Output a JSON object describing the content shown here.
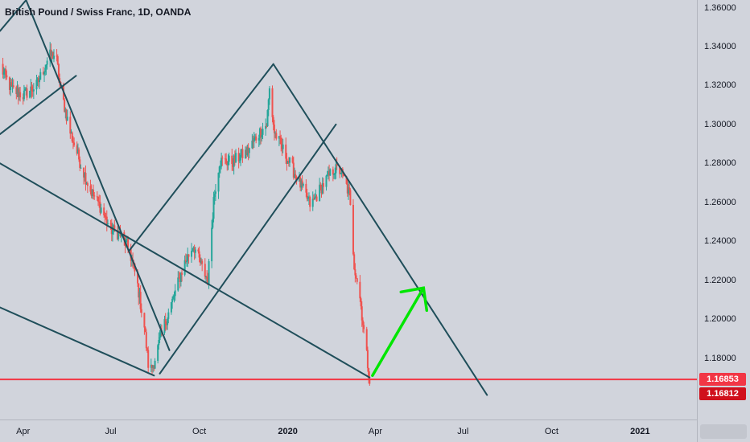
{
  "symbol_title": "British Pound / Swiss Franc, 1D, OANDA",
  "colors": {
    "background": "#d1d4dc",
    "up": "#26a69a",
    "down": "#ef5350",
    "trendline": "#1f4e5a",
    "support": "#f23645",
    "arrow": "#00e600",
    "last_price_tag": "#f23645",
    "second_price_tag": "#d0101c"
  },
  "price_tags": {
    "last_price": "1.16853",
    "second_price": "1.16812"
  },
  "chart_data": {
    "type": "candlestick",
    "title": "British Pound / Swiss Franc, 1D, OANDA",
    "ylim": [
      1.16,
      1.365
    ],
    "yticks": [
      "1.36000",
      "1.34000",
      "1.32000",
      "1.30000",
      "1.28000",
      "1.26000",
      "1.24000",
      "1.22000",
      "1.20000",
      "1.18000"
    ],
    "xticks": [
      {
        "label": "Apr",
        "date": "2019-04-01"
      },
      {
        "label": "Jul",
        "date": "2019-07-01"
      },
      {
        "label": "Oct",
        "date": "2019-10-01"
      },
      {
        "label": "2020",
        "date": "2020-01-01",
        "bold": true
      },
      {
        "label": "Apr",
        "date": "2020-04-01"
      },
      {
        "label": "Jul",
        "date": "2020-07-01"
      },
      {
        "label": "Oct",
        "date": "2020-10-01"
      },
      {
        "label": "2021",
        "date": "2021-01-01",
        "bold": true
      }
    ],
    "xlim": [
      "2019-03-08",
      "2021-03-01"
    ],
    "price_path": [
      [
        "2019-03-08",
        1.33
      ],
      [
        "2019-03-20",
        1.318
      ],
      [
        "2019-04-01",
        1.315
      ],
      [
        "2019-04-15",
        1.32
      ],
      [
        "2019-04-28",
        1.335
      ],
      [
        "2019-05-05",
        1.336
      ],
      [
        "2019-05-10",
        1.318
      ],
      [
        "2019-05-20",
        1.296
      ],
      [
        "2019-06-01",
        1.278
      ],
      [
        "2019-06-10",
        1.266
      ],
      [
        "2019-06-20",
        1.258
      ],
      [
        "2019-07-01",
        1.246
      ],
      [
        "2019-07-10",
        1.244
      ],
      [
        "2019-07-20",
        1.236
      ],
      [
        "2019-07-28",
        1.22
      ],
      [
        "2019-08-05",
        1.196
      ],
      [
        "2019-08-10",
        1.172
      ],
      [
        "2019-08-15",
        1.178
      ],
      [
        "2019-08-25",
        1.196
      ],
      [
        "2019-09-05",
        1.212
      ],
      [
        "2019-09-15",
        1.228
      ],
      [
        "2019-09-25",
        1.238
      ],
      [
        "2019-10-05",
        1.225
      ],
      [
        "2019-10-10",
        1.22
      ],
      [
        "2019-10-16",
        1.262
      ],
      [
        "2019-10-22",
        1.281
      ],
      [
        "2019-11-05",
        1.281
      ],
      [
        "2019-11-20",
        1.286
      ],
      [
        "2019-12-01",
        1.295
      ],
      [
        "2019-12-10",
        1.3
      ],
      [
        "2019-12-13",
        1.318
      ],
      [
        "2019-12-18",
        1.296
      ],
      [
        "2020-01-01",
        1.282
      ],
      [
        "2020-01-15",
        1.268
      ],
      [
        "2020-01-25",
        1.258
      ],
      [
        "2020-02-05",
        1.268
      ],
      [
        "2020-02-18",
        1.277
      ],
      [
        "2020-02-25",
        1.276
      ],
      [
        "2020-03-05",
        1.264
      ],
      [
        "2020-03-10",
        1.228
      ],
      [
        "2020-03-15",
        1.215
      ],
      [
        "2020-03-20",
        1.194
      ],
      [
        "2020-03-26",
        1.1685
      ]
    ],
    "trendlines": [
      {
        "from": [
          "2019-03-08",
          1.348
        ],
        "to": [
          "2019-04-06",
          1.365
        ]
      },
      {
        "from": [
          "2019-03-08",
          1.295
        ],
        "to": [
          "2019-05-26",
          1.325
        ]
      },
      {
        "from": [
          "2019-04-04",
          1.364
        ],
        "to": [
          "2019-08-31",
          1.184
        ]
      },
      {
        "from": [
          "2019-03-08",
          1.28
        ],
        "to": [
          "2020-03-26",
          1.17
        ]
      },
      {
        "from": [
          "2019-03-08",
          1.206
        ],
        "to": [
          "2019-08-15",
          1.171
        ]
      },
      {
        "from": [
          "2019-07-20",
          1.235
        ],
        "to": [
          "2019-12-17",
          1.331
        ]
      },
      {
        "from": [
          "2019-08-21",
          1.172
        ],
        "to": [
          "2020-02-20",
          1.3
        ]
      },
      {
        "from": [
          "2019-12-17",
          1.331
        ],
        "to": [
          "2020-07-26",
          1.161
        ]
      }
    ],
    "support_level": 1.169,
    "projection_arrow": {
      "from": [
        "2020-03-29",
        1.171
      ],
      "to": [
        "2020-05-21",
        1.216
      ]
    }
  }
}
